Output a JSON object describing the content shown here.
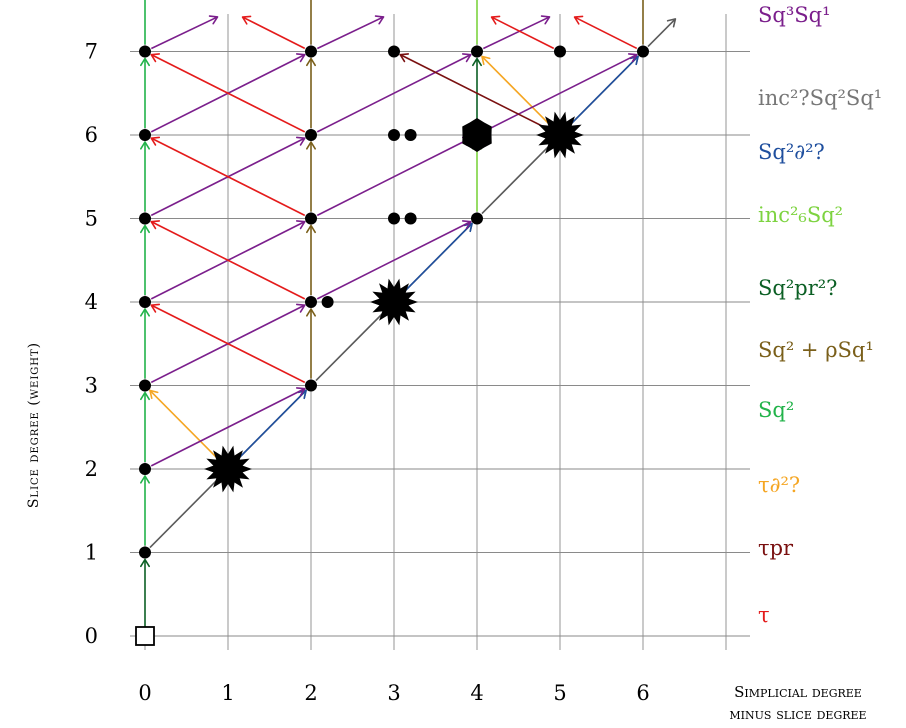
{
  "colors": {
    "grid": "#8a8a8a",
    "diagonal": "#5a5a5a",
    "purple": "#7b1f8c",
    "gray": "#777777",
    "blue": "#1f4f9e",
    "lightgreen": "#7dd340",
    "darkgreen": "#0b5f24",
    "olive": "#7a5f1a",
    "green": "#22b34a",
    "orange": "#f5a623",
    "maroon": "#7a1010",
    "red": "#e41b1b",
    "black": "#000000"
  },
  "axes": {
    "x_ticks": [
      "0",
      "1",
      "2",
      "3",
      "4",
      "5",
      "6"
    ],
    "y_ticks": [
      "0",
      "1",
      "2",
      "3",
      "4",
      "5",
      "6",
      "7"
    ],
    "y_label": "Slice degree (weight)",
    "x_label_line1": "Simplicial degree",
    "x_label_line2": "minus slice degree"
  },
  "legend": [
    {
      "label": "Sq³Sq¹",
      "color": "purple"
    },
    {
      "label": "inc²?Sq²Sq¹",
      "color": "gray"
    },
    {
      "label": "Sq²∂²?",
      "color": "blue"
    },
    {
      "label": "inc²₆Sq²",
      "color": "lightgreen"
    },
    {
      "label": "Sq²pr²?",
      "color": "darkgreen"
    },
    {
      "label": "Sq² + ρSq¹",
      "color": "olive"
    },
    {
      "label": "Sq²",
      "color": "green"
    },
    {
      "label": "τ∂²?",
      "color": "orange"
    },
    {
      "label": "τpr",
      "color": "maroon"
    },
    {
      "label": "τ",
      "color": "red"
    }
  ],
  "nodes": [
    {
      "x": 0,
      "y": 0,
      "kind": "square"
    },
    {
      "x": 0,
      "y": 1,
      "kind": "dot"
    },
    {
      "x": 0,
      "y": 2,
      "kind": "dot"
    },
    {
      "x": 0,
      "y": 3,
      "kind": "dot"
    },
    {
      "x": 0,
      "y": 4,
      "kind": "dot"
    },
    {
      "x": 0,
      "y": 5,
      "kind": "dot"
    },
    {
      "x": 0,
      "y": 6,
      "kind": "dot"
    },
    {
      "x": 0,
      "y": 7,
      "kind": "dot"
    },
    {
      "x": 1,
      "y": 2,
      "kind": "star"
    },
    {
      "x": 2,
      "y": 3,
      "kind": "dot"
    },
    {
      "x": 2,
      "y": 4,
      "kind": "dot"
    },
    {
      "x": 2.2,
      "y": 4,
      "kind": "dot"
    },
    {
      "x": 2,
      "y": 5,
      "kind": "dot"
    },
    {
      "x": 2,
      "y": 6,
      "kind": "dot"
    },
    {
      "x": 2,
      "y": 7,
      "kind": "dot"
    },
    {
      "x": 3,
      "y": 4,
      "kind": "star"
    },
    {
      "x": 3,
      "y": 5,
      "kind": "dot"
    },
    {
      "x": 3.2,
      "y": 5,
      "kind": "dot"
    },
    {
      "x": 3,
      "y": 6,
      "kind": "dot"
    },
    {
      "x": 3.2,
      "y": 6,
      "kind": "dot"
    },
    {
      "x": 3,
      "y": 7,
      "kind": "dot"
    },
    {
      "x": 4,
      "y": 5,
      "kind": "dot"
    },
    {
      "x": 4,
      "y": 6,
      "kind": "hexagon"
    },
    {
      "x": 4,
      "y": 7,
      "kind": "dot"
    },
    {
      "x": 5,
      "y": 6,
      "kind": "star"
    },
    {
      "x": 5,
      "y": 7,
      "kind": "dot"
    },
    {
      "x": 6,
      "y": 7,
      "kind": "dot"
    }
  ],
  "arrows": [
    {
      "color": "darkgreen",
      "from": [
        0,
        0
      ],
      "to": [
        0,
        1
      ]
    },
    {
      "color": "green",
      "from": [
        0,
        1
      ],
      "to": [
        0,
        2
      ]
    },
    {
      "color": "green",
      "from": [
        0,
        2
      ],
      "to": [
        0,
        3
      ]
    },
    {
      "color": "green",
      "from": [
        0,
        3
      ],
      "to": [
        0,
        4
      ]
    },
    {
      "color": "green",
      "from": [
        0,
        4
      ],
      "to": [
        0,
        5
      ]
    },
    {
      "color": "green",
      "from": [
        0,
        5
      ],
      "to": [
        0,
        6
      ]
    },
    {
      "color": "green",
      "from": [
        0,
        6
      ],
      "to": [
        0,
        7
      ]
    },
    {
      "color": "green",
      "from": [
        0,
        7
      ],
      "to": [
        0,
        8
      ]
    },
    {
      "color": "diagonal",
      "from": [
        0,
        1
      ],
      "to": [
        1,
        2
      ]
    },
    {
      "color": "diagonal",
      "from": [
        1,
        2
      ],
      "to": [
        2,
        3
      ]
    },
    {
      "color": "diagonal",
      "from": [
        2,
        3
      ],
      "to": [
        3,
        4
      ]
    },
    {
      "color": "diagonal",
      "from": [
        3,
        4
      ],
      "to": [
        4,
        5
      ]
    },
    {
      "color": "diagonal",
      "from": [
        4,
        5
      ],
      "to": [
        5,
        6
      ]
    },
    {
      "color": "diagonal",
      "from": [
        5,
        6
      ],
      "to": [
        6,
        7
      ]
    },
    {
      "color": "diagonal",
      "from": [
        6,
        7
      ],
      "to": [
        6.45,
        7.45
      ]
    },
    {
      "color": "blue",
      "from": [
        1,
        2
      ],
      "to": [
        2,
        3
      ]
    },
    {
      "color": "blue",
      "from": [
        3,
        4
      ],
      "to": [
        4,
        5
      ]
    },
    {
      "color": "blue",
      "from": [
        5,
        6
      ],
      "to": [
        6,
        7
      ]
    },
    {
      "color": "orange",
      "from": [
        1,
        2
      ],
      "to": [
        0,
        3
      ]
    },
    {
      "color": "orange",
      "from": [
        5,
        6
      ],
      "to": [
        4,
        7
      ]
    },
    {
      "color": "purple",
      "from": [
        0,
        2
      ],
      "to": [
        2,
        3
      ]
    },
    {
      "color": "purple",
      "from": [
        0,
        3
      ],
      "to": [
        2,
        4
      ]
    },
    {
      "color": "purple",
      "from": [
        0,
        4
      ],
      "to": [
        2,
        5
      ]
    },
    {
      "color": "purple",
      "from": [
        0,
        5
      ],
      "to": [
        2,
        6
      ]
    },
    {
      "color": "purple",
      "from": [
        0,
        6
      ],
      "to": [
        2,
        7
      ]
    },
    {
      "color": "purple",
      "from": [
        0,
        7
      ],
      "to": [
        0.95,
        7.45
      ]
    },
    {
      "color": "purple",
      "from": [
        2,
        4
      ],
      "to": [
        4,
        5
      ]
    },
    {
      "color": "purple",
      "from": [
        2,
        5
      ],
      "to": [
        4,
        6
      ]
    },
    {
      "color": "purple",
      "from": [
        2,
        6
      ],
      "to": [
        4,
        7
      ]
    },
    {
      "color": "purple",
      "from": [
        2,
        7
      ],
      "to": [
        2.95,
        7.45
      ]
    },
    {
      "color": "purple",
      "from": [
        4,
        6
      ],
      "to": [
        6,
        7
      ]
    },
    {
      "color": "purple",
      "from": [
        4,
        7
      ],
      "to": [
        4.95,
        7.45
      ]
    },
    {
      "color": "red",
      "from": [
        2,
        3
      ],
      "to": [
        0,
        4
      ]
    },
    {
      "color": "red",
      "from": [
        2,
        4
      ],
      "to": [
        0,
        5
      ]
    },
    {
      "color": "red",
      "from": [
        2,
        5
      ],
      "to": [
        0,
        6
      ]
    },
    {
      "color": "red",
      "from": [
        2,
        6
      ],
      "to": [
        0,
        7
      ]
    },
    {
      "color": "red",
      "from": [
        2,
        7
      ],
      "to": [
        1.1,
        7.45
      ]
    },
    {
      "color": "red",
      "from": [
        5,
        7
      ],
      "to": [
        4.1,
        7.45
      ]
    },
    {
      "color": "red",
      "from": [
        6,
        7
      ],
      "to": [
        5.1,
        7.45
      ]
    },
    {
      "color": "olive",
      "from": [
        2,
        3
      ],
      "to": [
        2,
        4
      ]
    },
    {
      "color": "olive",
      "from": [
        2,
        4
      ],
      "to": [
        2,
        5
      ]
    },
    {
      "color": "olive",
      "from": [
        2,
        5
      ],
      "to": [
        2,
        6
      ]
    },
    {
      "color": "olive",
      "from": [
        2,
        6
      ],
      "to": [
        2,
        7
      ]
    },
    {
      "color": "olive",
      "from": [
        2,
        7
      ],
      "to": [
        2,
        8
      ]
    },
    {
      "color": "olive",
      "from": [
        6,
        7
      ],
      "to": [
        6,
        8
      ]
    },
    {
      "color": "lightgreen",
      "from": [
        4,
        5
      ],
      "to": [
        4,
        6
      ]
    },
    {
      "color": "lightgreen",
      "from": [
        4,
        7
      ],
      "to": [
        4,
        8
      ]
    },
    {
      "color": "darkgreen",
      "from": [
        4,
        6
      ],
      "to": [
        4,
        7
      ]
    },
    {
      "color": "maroon",
      "from": [
        5,
        6
      ],
      "to": [
        3,
        7
      ]
    }
  ]
}
